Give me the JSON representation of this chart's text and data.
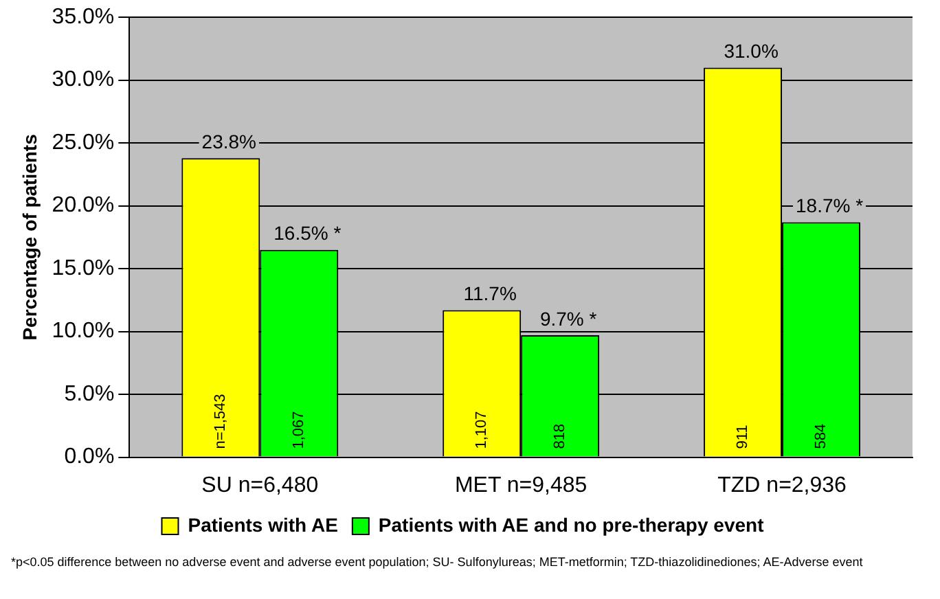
{
  "chart_data": {
    "type": "bar",
    "ylabel": "Percentage of patients",
    "categories": [
      "SU n=6,480",
      "MET n=9,485",
      "TZD n=2,936"
    ],
    "series": [
      {
        "name": "Patients with AE",
        "color": "#ffff00",
        "values": [
          23.8,
          11.7,
          31.0
        ],
        "value_labels": [
          "23.8%",
          "11.7%",
          "31.0%"
        ]
      },
      {
        "name": "Patients with AE and no pre-therapy event",
        "color": "#00ff00",
        "values": [
          16.5,
          9.7,
          18.7
        ],
        "value_labels": [
          "16.5% *",
          "9.7% *",
          "18.7% *"
        ]
      }
    ],
    "ylim": [
      0,
      35
    ],
    "yticks": [
      {
        "value": 0,
        "label": "0.0%"
      },
      {
        "value": 5,
        "label": "5.0%"
      },
      {
        "value": 10,
        "label": "10.0%"
      },
      {
        "value": 15,
        "label": "15.0%"
      },
      {
        "value": 20,
        "label": "20.0%"
      },
      {
        "value": 25,
        "label": "25.0%"
      },
      {
        "value": 30,
        "label": "30.0%"
      },
      {
        "value": 35,
        "label": "35.0%"
      }
    ],
    "grid": "y",
    "legend": "bottom",
    "annotations": [
      {
        "text": "n=1,543",
        "x": "SU n=6,480",
        "y": 0
      },
      {
        "text": "1,067",
        "x": "SU n=6,480",
        "y": 0
      },
      {
        "text": "1,107",
        "x": "MET n=9,485",
        "y": 0
      },
      {
        "text": "818",
        "x": "MET n=9,485",
        "y": 0
      },
      {
        "text": "911",
        "x": "TZD n=2,936",
        "y": 0
      },
      {
        "text": "584",
        "x": "TZD n=2,936",
        "y": 0
      },
      "*p<0.05 difference between no adverse event and adverse event population; SU- Sulfonylureas; MET-metformin; TZD-thiazolidinediones; AE-Adverse event"
    ]
  }
}
